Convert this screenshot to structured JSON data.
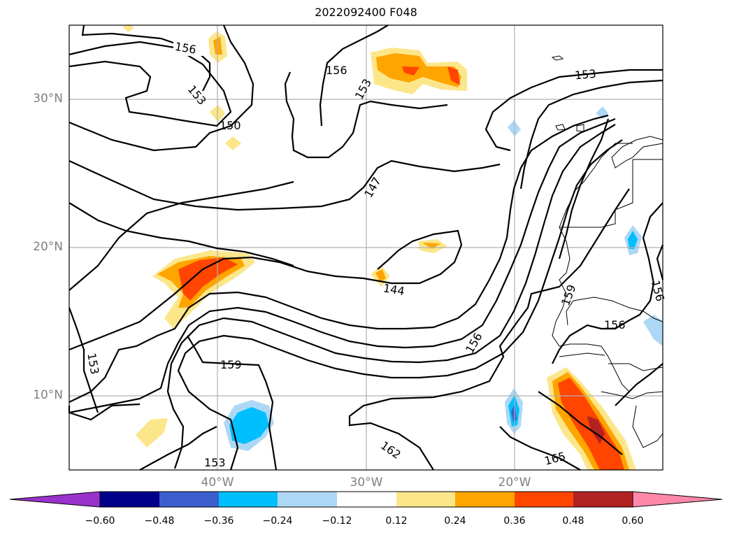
{
  "title": "2022092400 F048",
  "map": {
    "lat_labels": [
      "30°N",
      "20°N",
      "10°N"
    ],
    "lon_labels": [
      "40°W",
      "30°W",
      "20°W"
    ],
    "contour_labels": [
      "156",
      "153",
      "150",
      "156",
      "153",
      "147",
      "153",
      "144",
      "159",
      "156",
      "156",
      "159",
      "153",
      "162",
      "165",
      "153",
      "156"
    ]
  },
  "colorbar": {
    "ticks": [
      "−0.60",
      "−0.48",
      "−0.36",
      "−0.24",
      "−0.12",
      "0.12",
      "0.24",
      "0.36",
      "0.48",
      "0.60"
    ],
    "colors": [
      "#9932cc",
      "#00008b",
      "#3a5fcd",
      "#00bfff",
      "#add8f5",
      "#ffffff",
      "#fce68a",
      "#ffa500",
      "#ff4500",
      "#b22222",
      "#ff88aa"
    ]
  }
}
